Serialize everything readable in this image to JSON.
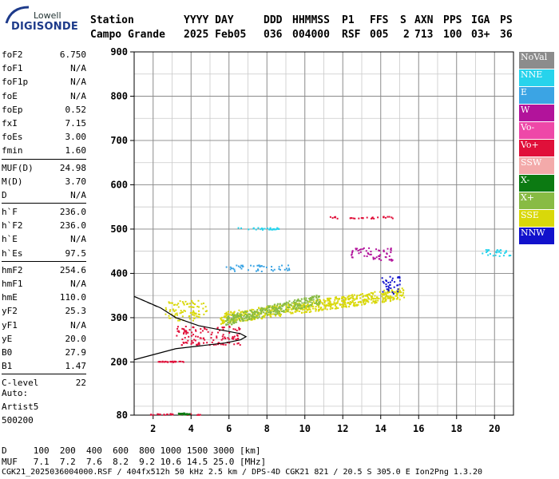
{
  "logo": {
    "top": "Lowell",
    "bottom": "DIGISONDE"
  },
  "header": {
    "row1": [
      "Station",
      "YYYY DAY",
      "DDD",
      "HHMMSS",
      "P1",
      "FFS",
      "S",
      "AXN",
      "PPS",
      "IGA",
      "PS"
    ],
    "row2": [
      "Campo Grande",
      "2025 Feb05",
      "036",
      "004000",
      "RSF",
      "005",
      "2",
      "713",
      "100",
      "03+",
      "36"
    ]
  },
  "params": [
    [
      {
        "k": "foF2",
        "v": "6.750"
      },
      {
        "k": "foF1",
        "v": "N/A"
      },
      {
        "k": "foF1p",
        "v": "N/A"
      },
      {
        "k": "foE",
        "v": "N/A"
      },
      {
        "k": "foEp",
        "v": "0.52"
      },
      {
        "k": "fxI",
        "v": "7.15"
      },
      {
        "k": "foEs",
        "v": "3.00"
      },
      {
        "k": "fmin",
        "v": "1.60"
      }
    ],
    [
      {
        "k": "MUF(D)",
        "v": "24.98"
      },
      {
        "k": "M(D)",
        "v": "3.70"
      },
      {
        "k": "D",
        "v": "N/A"
      }
    ],
    [
      {
        "k": "h`F",
        "v": "236.0"
      },
      {
        "k": "h`F2",
        "v": "236.0"
      },
      {
        "k": "h`E",
        "v": "N/A"
      },
      {
        "k": "h`Es",
        "v": "97.5"
      }
    ],
    [
      {
        "k": "hmF2",
        "v": "254.6"
      },
      {
        "k": "hmF1",
        "v": "N/A"
      },
      {
        "k": "hmE",
        "v": "110.0"
      },
      {
        "k": "yF2",
        "v": "25.3"
      },
      {
        "k": "yF1",
        "v": "N/A"
      },
      {
        "k": "yE",
        "v": "20.0"
      },
      {
        "k": "B0",
        "v": "27.9"
      },
      {
        "k": "B1",
        "v": "1.47"
      }
    ],
    [
      {
        "k": "C-level",
        "v": "22"
      }
    ]
  ],
  "auto": {
    "line1": "Auto:",
    "line2": "Artist5",
    "line3": "500200"
  },
  "legend": [
    {
      "label": "NoVal",
      "color": "#8c8c8c"
    },
    {
      "label": "NNE",
      "color": "#27d3ec"
    },
    {
      "label": "E",
      "color": "#3ba4e4"
    },
    {
      "label": "W",
      "color": "#b2139b"
    },
    {
      "label": "Vo-",
      "color": "#ee48a8"
    },
    {
      "label": "Vo+",
      "color": "#e0103a"
    },
    {
      "label": "SSW",
      "color": "#f3aaaa"
    },
    {
      "label": "X-",
      "color": "#0c7a12"
    },
    {
      "label": "X+",
      "color": "#88bb44"
    },
    {
      "label": "SSE",
      "color": "#d9d80a"
    },
    {
      "label": "NNW",
      "color": "#1111cc"
    }
  ],
  "footer": {
    "d_row": "D     100  200  400  600  800 1000 1500 3000 [km]",
    "muf_row": "MUF   7.1  7.2  7.6  8.2  9.2 10.6 14.5 25.0 [MHz]",
    "info": "CGK21_2025036004000.RSF / 404fx512h 50 kHz 2.5 km / DPS-4D CGK21 821 / 20.5 S 305.0 E Ion2Png 1.3.20"
  },
  "chart_data": {
    "type": "scatter",
    "title": "",
    "xlabel": "",
    "ylabel": "",
    "xlim": [
      1,
      21
    ],
    "ylim": [
      80,
      900
    ],
    "x_ticks": [
      2,
      4,
      6,
      8,
      10,
      12,
      14,
      16,
      18,
      20
    ],
    "y_ticks": [
      80,
      200,
      300,
      400,
      500,
      600,
      700,
      800,
      900
    ],
    "grid": true,
    "clusters": [
      {
        "label": "SSE",
        "color": "#d9d80a",
        "x": [
          2.6,
          4.8
        ],
        "y": [
          295,
          340
        ]
      },
      {
        "label": "SSE",
        "color": "#d9d80a",
        "x": [
          5.5,
          15.2
        ],
        "y": [
          300,
          375
        ]
      },
      {
        "label": "Vo+",
        "color": "#e0103a",
        "x": [
          3.1,
          6.6
        ],
        "y": [
          240,
          282
        ]
      },
      {
        "label": "X+",
        "color": "#88bb44",
        "x": [
          5.8,
          10.8
        ],
        "y": [
          295,
          360
        ]
      },
      {
        "label": "E",
        "color": "#3ba4e4",
        "x": [
          5.8,
          9.2
        ],
        "y": [
          405,
          420
        ]
      },
      {
        "label": "NNE",
        "color": "#27d3ec",
        "x": [
          6.4,
          8.6
        ],
        "y": [
          500,
          505
        ]
      },
      {
        "label": "Vo+",
        "color": "#e0103a",
        "x": [
          11.2,
          14.8
        ],
        "y": [
          525,
          530
        ]
      },
      {
        "label": "NNW",
        "color": "#1111cc",
        "x": [
          14.0,
          15.0
        ],
        "y": [
          355,
          395
        ]
      },
      {
        "label": "W",
        "color": "#b2139b",
        "x": [
          12.4,
          14.6
        ],
        "y": [
          430,
          460
        ]
      },
      {
        "label": "NNE",
        "color": "#27d3ec",
        "x": [
          19.2,
          20.8
        ],
        "y": [
          440,
          455
        ]
      },
      {
        "label": "Vo+",
        "color": "#e0103a",
        "x": [
          1.8,
          4.5
        ],
        "y": [
          82,
          85
        ]
      },
      {
        "label": "Vo+",
        "color": "#e0103a",
        "x": [
          2.2,
          3.6
        ],
        "y": [
          201,
          203
        ]
      },
      {
        "label": "X-",
        "color": "#0c7a12",
        "x": [
          3.2,
          3.9
        ],
        "y": [
          83,
          86
        ]
      }
    ],
    "profile_curve": {
      "color": "#000000",
      "points": [
        [
          1,
          205
        ],
        [
          3.2,
          230
        ],
        [
          5.8,
          243
        ],
        [
          6.6,
          250
        ],
        [
          6.9,
          257
        ],
        [
          6.6,
          264
        ],
        [
          5.6,
          272
        ],
        [
          4.4,
          282
        ],
        [
          3.2,
          300
        ],
        [
          2.4,
          322
        ],
        [
          1,
          348
        ]
      ]
    }
  }
}
